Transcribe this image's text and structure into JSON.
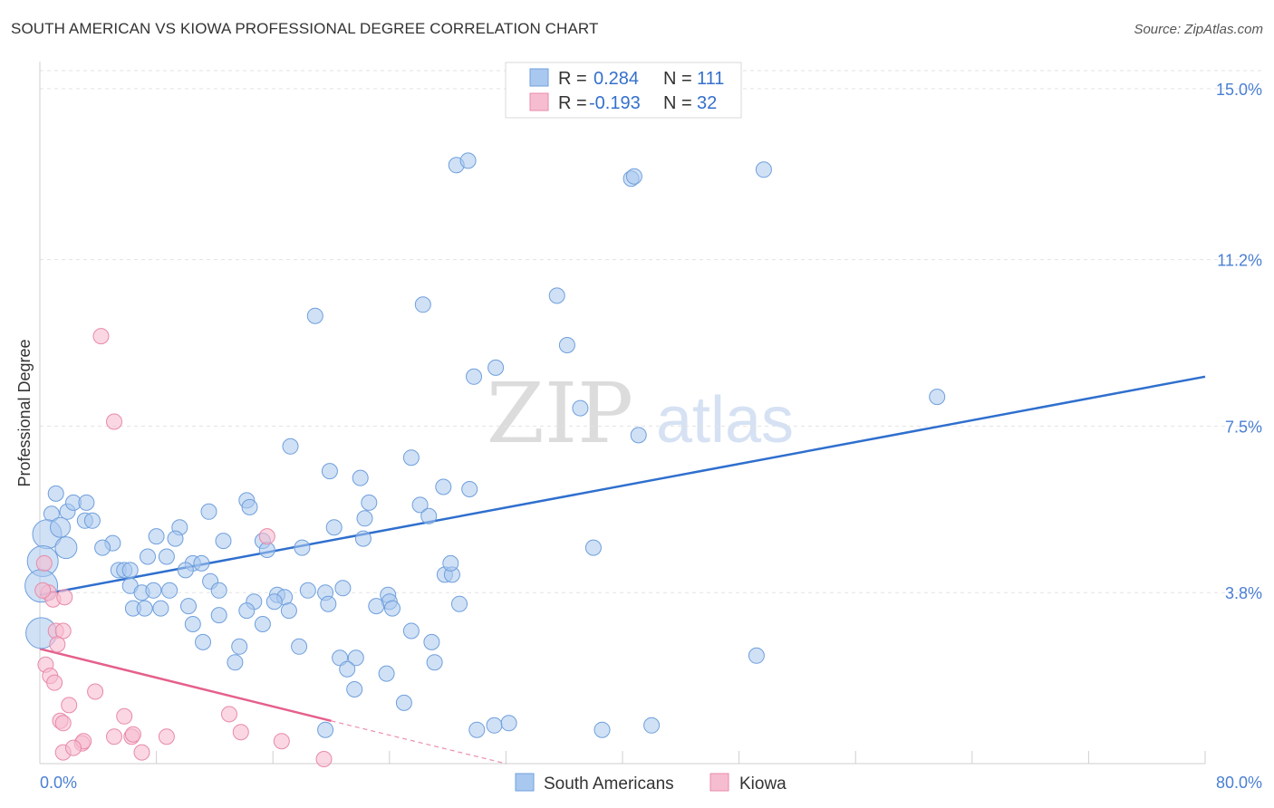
{
  "chart_data": {
    "type": "scatter",
    "title": "SOUTH AMERICAN VS KIOWA PROFESSIONAL DEGREE CORRELATION CHART",
    "source": "Source: ZipAtlas.com",
    "xlabel": "",
    "ylabel": "Professional Degree",
    "xlim": [
      0,
      80
    ],
    "ylim": [
      0,
      15.4
    ],
    "x_tick_labels": [
      "0.0%",
      "80.0%"
    ],
    "y_ticks": [
      3.8,
      7.5,
      11.2,
      15.0
    ],
    "y_tick_labels": [
      "3.8%",
      "7.5%",
      "11.2%",
      "15.0%"
    ],
    "watermark": {
      "zip": "ZIP",
      "atlas": "atlas"
    },
    "legend": [
      {
        "r_label": "R =",
        "r_value": "0.284",
        "n_label": "N =",
        "n_value": "111"
      },
      {
        "r_label": "R =",
        "r_value": "-0.193",
        "n_label": "N =",
        "n_value": "32"
      }
    ],
    "series": [
      {
        "name": "South Americans",
        "color": "#a9c8ef",
        "stroke": "#6f9fdc",
        "trend_color": "#2f6fce",
        "trend": {
          "x0": 0,
          "y0": 3.75,
          "x1": 80,
          "y1": 8.6
        },
        "points": [
          [
            28.6,
            13.3
          ],
          [
            29.4,
            13.4
          ],
          [
            40.6,
            13.0
          ],
          [
            40.8,
            13.05
          ],
          [
            49.7,
            13.2
          ],
          [
            18.9,
            9.95
          ],
          [
            26.3,
            10.2
          ],
          [
            35.5,
            10.4
          ],
          [
            36.2,
            9.3
          ],
          [
            31.3,
            8.8
          ],
          [
            29.8,
            8.6
          ],
          [
            37.1,
            7.9
          ],
          [
            41.1,
            7.3
          ],
          [
            61.6,
            8.15
          ],
          [
            17.2,
            7.05
          ],
          [
            25.5,
            6.8
          ],
          [
            19.9,
            6.5
          ],
          [
            22.0,
            6.35
          ],
          [
            27.7,
            6.15
          ],
          [
            29.5,
            6.1
          ],
          [
            1.1,
            6.0
          ],
          [
            0.8,
            5.55
          ],
          [
            1.9,
            5.6
          ],
          [
            2.3,
            5.8
          ],
          [
            3.2,
            5.8
          ],
          [
            3.1,
            5.4
          ],
          [
            3.6,
            5.4
          ],
          [
            14.2,
            5.85
          ],
          [
            14.4,
            5.7
          ],
          [
            11.6,
            5.6
          ],
          [
            22.6,
            5.8
          ],
          [
            26.1,
            5.75
          ],
          [
            26.7,
            5.5
          ],
          [
            22.3,
            5.45
          ],
          [
            20.2,
            5.25
          ],
          [
            9.6,
            5.25
          ],
          [
            8.0,
            5.05
          ],
          [
            9.3,
            5.0
          ],
          [
            5.0,
            4.9
          ],
          [
            4.3,
            4.8
          ],
          [
            15.3,
            4.95
          ],
          [
            12.6,
            4.95
          ],
          [
            15.6,
            4.75
          ],
          [
            18.0,
            4.8
          ],
          [
            22.2,
            5.0
          ],
          [
            0.5,
            5.1
          ],
          [
            1.4,
            5.25
          ],
          [
            1.8,
            4.8
          ],
          [
            7.4,
            4.6
          ],
          [
            8.7,
            4.6
          ],
          [
            10.5,
            4.45
          ],
          [
            11.1,
            4.45
          ],
          [
            10.0,
            4.3
          ],
          [
            5.4,
            4.3
          ],
          [
            5.8,
            4.3
          ],
          [
            6.2,
            4.3
          ],
          [
            6.2,
            3.95
          ],
          [
            7.0,
            3.8
          ],
          [
            7.8,
            3.85
          ],
          [
            8.9,
            3.85
          ],
          [
            11.7,
            4.05
          ],
          [
            12.3,
            3.85
          ],
          [
            18.4,
            3.85
          ],
          [
            19.6,
            3.8
          ],
          [
            20.8,
            3.9
          ],
          [
            16.3,
            3.75
          ],
          [
            16.8,
            3.7
          ],
          [
            14.7,
            3.6
          ],
          [
            23.9,
            3.75
          ],
          [
            24.0,
            3.6
          ],
          [
            27.8,
            4.2
          ],
          [
            28.3,
            4.2
          ],
          [
            28.2,
            4.45
          ],
          [
            0.2,
            4.5
          ],
          [
            0.1,
            3.95
          ],
          [
            6.4,
            3.45
          ],
          [
            7.2,
            3.45
          ],
          [
            8.3,
            3.45
          ],
          [
            10.2,
            3.5
          ],
          [
            12.3,
            3.3
          ],
          [
            14.2,
            3.4
          ],
          [
            16.1,
            3.6
          ],
          [
            17.1,
            3.4
          ],
          [
            19.8,
            3.55
          ],
          [
            23.1,
            3.5
          ],
          [
            24.2,
            3.45
          ],
          [
            28.8,
            3.55
          ],
          [
            0.1,
            2.9
          ],
          [
            10.5,
            3.1
          ],
          [
            15.3,
            3.1
          ],
          [
            25.5,
            2.95
          ],
          [
            26.9,
            2.7
          ],
          [
            11.2,
            2.7
          ],
          [
            13.7,
            2.6
          ],
          [
            17.8,
            2.6
          ],
          [
            20.6,
            2.35
          ],
          [
            21.7,
            2.35
          ],
          [
            27.1,
            2.25
          ],
          [
            13.4,
            2.25
          ],
          [
            21.1,
            2.1
          ],
          [
            23.8,
            2.0
          ],
          [
            21.6,
            1.65
          ],
          [
            25.0,
            1.35
          ],
          [
            49.2,
            2.4
          ],
          [
            19.6,
            0.75
          ],
          [
            30.0,
            0.75
          ],
          [
            31.2,
            0.85
          ],
          [
            32.2,
            0.9
          ],
          [
            38.6,
            0.75
          ],
          [
            42.0,
            0.85
          ],
          [
            38.0,
            4.8
          ]
        ]
      },
      {
        "name": "Kiowa",
        "color": "#f6bdd0",
        "stroke": "#e88aa8",
        "trend_color": "#e5608a",
        "trend": {
          "x0": 0,
          "y0": 2.55,
          "x1": 20,
          "y1": 0.95
        },
        "trend_dashed_to": {
          "x": 32,
          "y": 0.0
        },
        "points": [
          [
            4.2,
            9.5
          ],
          [
            5.1,
            7.6
          ],
          [
            15.6,
            5.05
          ],
          [
            0.3,
            4.45
          ],
          [
            0.6,
            3.8
          ],
          [
            0.9,
            3.65
          ],
          [
            1.7,
            3.7
          ],
          [
            0.2,
            3.85
          ],
          [
            1.1,
            2.95
          ],
          [
            1.6,
            2.95
          ],
          [
            1.2,
            2.65
          ],
          [
            0.4,
            2.2
          ],
          [
            0.7,
            1.95
          ],
          [
            1.0,
            1.8
          ],
          [
            3.8,
            1.6
          ],
          [
            2.0,
            1.3
          ],
          [
            5.8,
            1.05
          ],
          [
            1.4,
            0.95
          ],
          [
            1.6,
            0.9
          ],
          [
            2.9,
            0.45
          ],
          [
            3.0,
            0.5
          ],
          [
            5.1,
            0.6
          ],
          [
            6.3,
            0.6
          ],
          [
            6.4,
            0.65
          ],
          [
            8.7,
            0.6
          ],
          [
            13.0,
            1.1
          ],
          [
            13.8,
            0.7
          ],
          [
            1.6,
            0.25
          ],
          [
            2.3,
            0.35
          ],
          [
            7.0,
            0.25
          ],
          [
            16.6,
            0.5
          ],
          [
            19.5,
            0.1
          ]
        ]
      }
    ]
  }
}
